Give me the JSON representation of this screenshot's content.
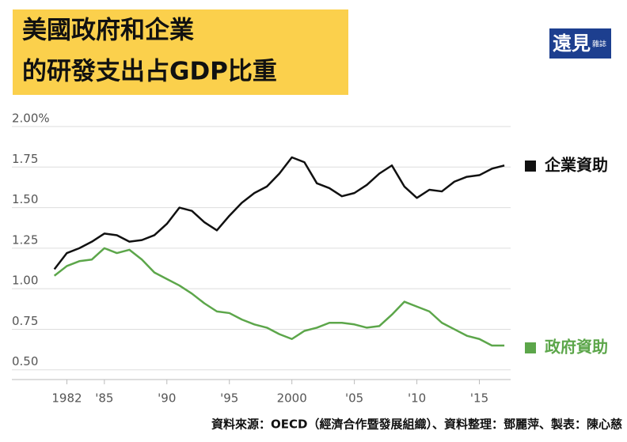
{
  "chart_data": {
    "type": "line",
    "title": "美國政府和企業",
    "subtitle": "的研發支出占GDP比重",
    "logo": "遠見",
    "logo_sub": "雜誌",
    "source": "資料來源：OECD（經濟合作暨發展組織）、資料整理：鄧麗萍、製表：陳心慈",
    "x": [
      1981,
      1982,
      1983,
      1984,
      1985,
      1986,
      1987,
      1988,
      1989,
      1990,
      1991,
      1992,
      1993,
      1994,
      1995,
      1996,
      1997,
      1998,
      1999,
      2000,
      2001,
      2002,
      2003,
      2004,
      2005,
      2006,
      2007,
      2008,
      2009,
      2010,
      2011,
      2012,
      2013,
      2014,
      2015,
      2016,
      2017
    ],
    "series": [
      {
        "name": "企業資助",
        "color": "#111111",
        "values": [
          1.12,
          1.22,
          1.25,
          1.29,
          1.34,
          1.33,
          1.29,
          1.3,
          1.33,
          1.4,
          1.5,
          1.48,
          1.41,
          1.36,
          1.45,
          1.53,
          1.59,
          1.63,
          1.71,
          1.81,
          1.78,
          1.65,
          1.62,
          1.57,
          1.59,
          1.64,
          1.71,
          1.76,
          1.63,
          1.56,
          1.61,
          1.6,
          1.66,
          1.69,
          1.7,
          1.74,
          1.76
        ]
      },
      {
        "name": "政府資助",
        "color": "#5ca64a",
        "values": [
          1.08,
          1.14,
          1.17,
          1.18,
          1.25,
          1.22,
          1.24,
          1.18,
          1.1,
          1.06,
          1.02,
          0.97,
          0.91,
          0.86,
          0.85,
          0.81,
          0.78,
          0.76,
          0.72,
          0.69,
          0.74,
          0.76,
          0.79,
          0.79,
          0.78,
          0.76,
          0.77,
          0.84,
          0.92,
          0.89,
          0.86,
          0.79,
          0.75,
          0.71,
          0.69,
          0.65,
          0.65
        ]
      }
    ],
    "xlim": [
      1977.6,
      2017.5
    ],
    "xticks": [
      1982,
      {
        "value": 1985,
        "label": "'85"
      },
      {
        "value": 1990,
        "label": "'90"
      },
      {
        "value": 1995,
        "label": "'95"
      },
      2000,
      {
        "value": 2005,
        "label": "'05"
      },
      {
        "value": 2010,
        "label": "'10"
      },
      {
        "value": 2015,
        "label": "'15"
      }
    ],
    "ylim": [
      0.45,
      2.0
    ],
    "yticks": [
      {
        "value": 0.5,
        "label": "0.50"
      },
      0.75,
      {
        "value": 1.0,
        "label": "1.00"
      },
      1.25,
      {
        "value": 1.5,
        "label": "1.50"
      },
      1.75,
      {
        "value": 2.0,
        "label": "2.00%"
      }
    ],
    "grid": true
  }
}
